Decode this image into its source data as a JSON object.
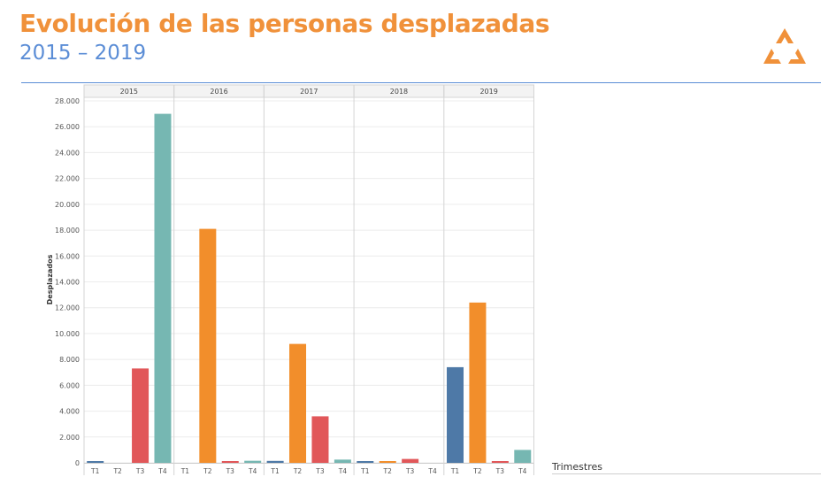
{
  "header": {
    "title": "Evolución de las personas desplazadas",
    "subtitle": "2015 – 2019"
  },
  "logo": {
    "icon": "triangle-arrows-logo-icon",
    "color": "#f0913a"
  },
  "colors": {
    "T1": "#4e79a7",
    "T2": "#f28e2b",
    "T3": "#e15759",
    "T4": "#76b7b2"
  },
  "chart_data": {
    "type": "bar",
    "ylabel": "Desplazados",
    "xlabel": "Trimestres",
    "ylim": [
      0,
      28000
    ],
    "y_ticks": [
      "0",
      "2.000",
      "4.000",
      "6.000",
      "8.000",
      "10.000",
      "12.000",
      "14.000",
      "16.000",
      "18.000",
      "20.000",
      "22.000",
      "24.000",
      "26.000",
      "28.000"
    ],
    "y_tick_values": [
      0,
      2000,
      4000,
      6000,
      8000,
      10000,
      12000,
      14000,
      16000,
      18000,
      20000,
      22000,
      24000,
      26000,
      28000
    ],
    "categories": [
      "T1",
      "T2",
      "T3",
      "T4"
    ],
    "panels": [
      {
        "year": "2015",
        "values": [
          60,
          0,
          7300,
          27000
        ]
      },
      {
        "year": "2016",
        "values": [
          0,
          18100,
          120,
          160
        ]
      },
      {
        "year": "2017",
        "values": [
          150,
          9200,
          3600,
          250
        ]
      },
      {
        "year": "2018",
        "values": [
          40,
          30,
          300,
          0
        ]
      },
      {
        "year": "2019",
        "values": [
          7400,
          12400,
          70,
          1000
        ]
      }
    ]
  }
}
